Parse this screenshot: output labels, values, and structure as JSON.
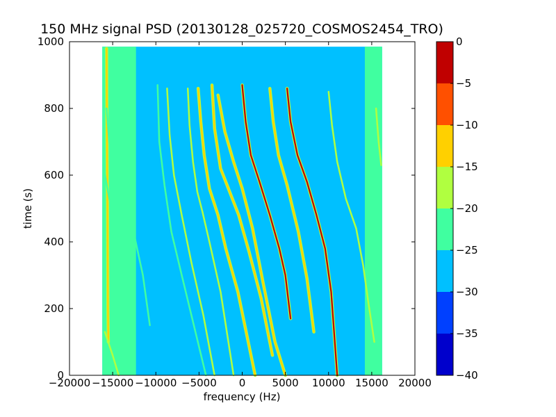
{
  "chart_data": {
    "type": "heatmap",
    "title": "150 MHz signal PSD (20130128_025720_COSMOS2454_TRO)",
    "xlabel": "frequency (Hz)",
    "ylabel": "time (s)",
    "xlim": [
      -20000,
      20000
    ],
    "ylim": [
      0,
      1000
    ],
    "x_ticks": [
      -20000,
      -15000,
      -10000,
      -5000,
      0,
      5000,
      10000,
      15000,
      20000
    ],
    "x_tick_labels": [
      "−20000",
      "−15000",
      "−10000",
      "−5000",
      "0",
      "5000",
      "10000",
      "15000",
      "20000"
    ],
    "y_ticks": [
      0,
      200,
      400,
      600,
      800,
      1000
    ],
    "y_tick_labels": [
      "0",
      "200",
      "400",
      "600",
      "800",
      "1000"
    ],
    "data_extent": {
      "x": [
        -16200,
        16200
      ],
      "y": [
        0,
        985
      ]
    },
    "colorbar": {
      "range": [
        -40,
        0
      ],
      "ticks": [
        0,
        -5,
        -10,
        -15,
        -20,
        -25,
        -30,
        -35,
        -40
      ],
      "tick_labels": [
        "0",
        "−5",
        "−10",
        "−15",
        "−20",
        "−25",
        "−30",
        "−35",
        "−40"
      ],
      "levels": [
        {
          "from": -40,
          "to": -35,
          "color": "#0000cc"
        },
        {
          "from": -35,
          "to": -30,
          "color": "#0040ff"
        },
        {
          "from": -30,
          "to": -25,
          "color": "#00c0ff"
        },
        {
          "from": -25,
          "to": -20,
          "color": "#40ffa0"
        },
        {
          "from": -20,
          "to": -15,
          "color": "#b0ff40"
        },
        {
          "from": -15,
          "to": -10,
          "color": "#ffd000"
        },
        {
          "from": -10,
          "to": -5,
          "color": "#ff5000"
        },
        {
          "from": -5,
          "to": 0,
          "color": "#c00000"
        }
      ]
    },
    "background_level": -27,
    "edge_bands": [
      {
        "x": [
          -16200,
          -12300
        ],
        "level": -22
      },
      {
        "x": [
          14200,
          16200
        ],
        "level": -22
      }
    ],
    "traces": [
      {
        "level": -12,
        "points": [
          [
            -15700,
            980
          ],
          [
            -15650,
            700
          ],
          [
            -15600,
            500
          ],
          [
            -15550,
            200
          ],
          [
            -15500,
            100
          ]
        ]
      },
      {
        "level": -22,
        "points": [
          [
            -15700,
            800
          ],
          [
            -15400,
            700
          ],
          [
            -14700,
            580
          ],
          [
            -13500,
            490
          ],
          [
            -12500,
            420
          ],
          [
            -11500,
            300
          ],
          [
            -10700,
            150
          ]
        ]
      },
      {
        "level": -22,
        "points": [
          [
            -16100,
            630
          ],
          [
            -15400,
            530
          ],
          [
            -14200,
            420
          ]
        ]
      },
      {
        "level": -18,
        "points": [
          [
            -15900,
            130
          ],
          [
            -15000,
            60
          ],
          [
            -14300,
            0
          ]
        ]
      },
      {
        "level": -22,
        "points": [
          [
            -9800,
            870
          ],
          [
            -9600,
            700
          ],
          [
            -9000,
            570
          ],
          [
            -8200,
            430
          ],
          [
            -7000,
            300
          ],
          [
            -5600,
            150
          ],
          [
            -4200,
            0
          ]
        ]
      },
      {
        "level": -20,
        "points": [
          [
            -8700,
            860
          ],
          [
            -8400,
            720
          ],
          [
            -7900,
            600
          ],
          [
            -7000,
            480
          ],
          [
            -5900,
            340
          ],
          [
            -4500,
            180
          ],
          [
            -3200,
            0
          ]
        ]
      },
      {
        "level": -20,
        "points": [
          [
            -6300,
            860
          ],
          [
            -6100,
            750
          ],
          [
            -5700,
            640
          ],
          [
            -5200,
            550
          ],
          [
            -4600,
            490
          ],
          [
            -3800,
            400
          ],
          [
            -2500,
            250
          ],
          [
            -1000,
            0
          ]
        ]
      },
      {
        "level": -12,
        "points": [
          [
            -5100,
            860
          ],
          [
            -4800,
            760
          ],
          [
            -4400,
            660
          ],
          [
            -3800,
            560
          ],
          [
            -2800,
            480
          ],
          [
            -1900,
            380
          ],
          [
            -500,
            250
          ],
          [
            1500,
            0
          ]
        ]
      },
      {
        "level": -12,
        "points": [
          [
            -3500,
            870
          ],
          [
            -3200,
            740
          ],
          [
            -2500,
            620
          ],
          [
            -1600,
            560
          ],
          [
            -400,
            480
          ],
          [
            800,
            370
          ],
          [
            2200,
            230
          ],
          [
            3500,
            60
          ]
        ]
      },
      {
        "level": -12,
        "points": [
          [
            -2800,
            840
          ],
          [
            -2000,
            730
          ],
          [
            -1000,
            640
          ],
          [
            0,
            560
          ],
          [
            1200,
            440
          ],
          [
            2400,
            280
          ],
          [
            3800,
            100
          ],
          [
            5000,
            0
          ]
        ]
      },
      {
        "level": -5,
        "points": [
          [
            0,
            870
          ],
          [
            400,
            760
          ],
          [
            1000,
            660
          ],
          [
            2000,
            580
          ],
          [
            3200,
            480
          ],
          [
            4300,
            380
          ],
          [
            5000,
            300
          ],
          [
            5600,
            170
          ]
        ]
      },
      {
        "level": -12,
        "points": [
          [
            3200,
            860
          ],
          [
            3600,
            760
          ],
          [
            4200,
            660
          ],
          [
            5200,
            570
          ],
          [
            6500,
            430
          ],
          [
            7500,
            290
          ],
          [
            8300,
            130
          ]
        ]
      },
      {
        "level": -5,
        "points": [
          [
            5200,
            860
          ],
          [
            5600,
            760
          ],
          [
            6400,
            660
          ],
          [
            7500,
            580
          ],
          [
            8600,
            480
          ],
          [
            9600,
            380
          ],
          [
            10300,
            250
          ],
          [
            11000,
            0
          ]
        ]
      },
      {
        "level": -20,
        "points": [
          [
            10000,
            850
          ],
          [
            10400,
            750
          ],
          [
            11000,
            640
          ],
          [
            12000,
            530
          ],
          [
            13200,
            440
          ],
          [
            14000,
            330
          ],
          [
            14600,
            220
          ],
          [
            15300,
            100
          ]
        ]
      },
      {
        "level": -20,
        "points": [
          [
            15500,
            800
          ],
          [
            15800,
            700
          ],
          [
            16100,
            630
          ]
        ]
      }
    ]
  }
}
